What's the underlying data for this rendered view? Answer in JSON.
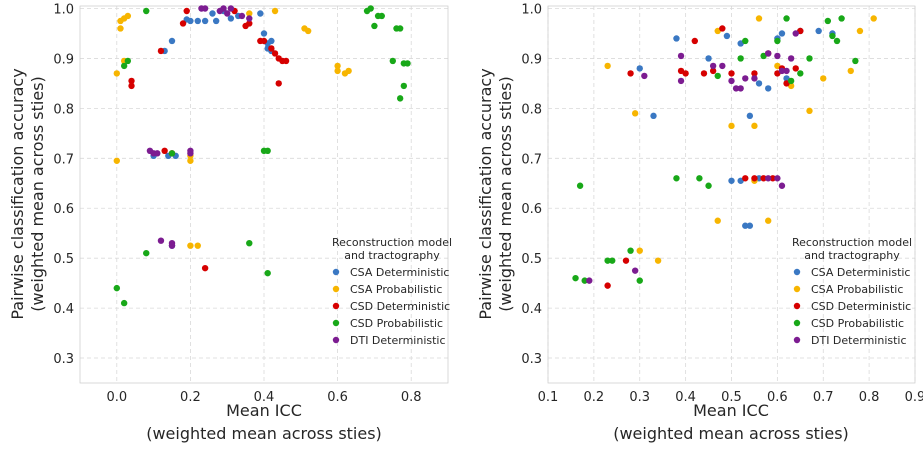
{
  "legend": {
    "title_line1": "Reconstruction model",
    "title_line2": "and tractography"
  },
  "colors": {
    "CSA Deterministic": "#3a78c3",
    "CSA Probabilistic": "#f7b500",
    "CSD Deterministic": "#d60000",
    "CSD Probabilistic": "#18a818",
    "DTI Deterministic": "#7c1c91"
  },
  "chart_data": [
    {
      "type": "scatter",
      "xlabel_line1": "Mean ICC",
      "xlabel_line2": "(weighted mean across sties)",
      "ylabel_line1": "Pairwise classification accuracy",
      "ylabel_line2": "(weighted mean across sties)",
      "xlim": [
        -0.1,
        0.9
      ],
      "ylim": [
        0.25,
        1.005
      ],
      "xticks": [
        0.0,
        0.2,
        0.4,
        0.6,
        0.8
      ],
      "xtick_labels": [
        "0.0",
        "0.2",
        "0.4",
        "0.6",
        "0.8"
      ],
      "yticks": [
        0.3,
        0.4,
        0.5,
        0.6,
        0.7,
        0.8,
        0.9,
        1.0
      ],
      "ytick_labels": [
        "0.3",
        "0.4",
        "0.5",
        "0.6",
        "0.7",
        "0.8",
        "0.9",
        "1.0"
      ],
      "grid": true,
      "legend_position": "lower-right",
      "series": [
        {
          "name": "CSA Deterministic",
          "points": [
            [
              0.13,
              0.915
            ],
            [
              0.15,
              0.935
            ],
            [
              0.19,
              0.978
            ],
            [
              0.2,
              0.975
            ],
            [
              0.22,
              0.975
            ],
            [
              0.24,
              0.975
            ],
            [
              0.26,
              0.99
            ],
            [
              0.27,
              0.975
            ],
            [
              0.29,
              0.995
            ],
            [
              0.31,
              0.98
            ],
            [
              0.33,
              0.985
            ],
            [
              0.39,
              0.99
            ],
            [
              0.4,
              0.95
            ],
            [
              0.41,
              0.93
            ],
            [
              0.41,
              0.92
            ],
            [
              0.42,
              0.935
            ],
            [
              0.42,
              0.915
            ],
            [
              0.1,
              0.705
            ],
            [
              0.14,
              0.705
            ],
            [
              0.16,
              0.705
            ],
            [
              0.15,
              0.525
            ]
          ]
        },
        {
          "name": "CSA Probabilistic",
          "points": [
            [
              0.0,
              0.87
            ],
            [
              0.01,
              0.96
            ],
            [
              0.01,
              0.975
            ],
            [
              0.02,
              0.98
            ],
            [
              0.03,
              0.985
            ],
            [
              0.0,
              0.695
            ],
            [
              0.36,
              0.99
            ],
            [
              0.43,
              0.995
            ],
            [
              0.51,
              0.96
            ],
            [
              0.52,
              0.955
            ],
            [
              0.6,
              0.875
            ],
            [
              0.6,
              0.885
            ],
            [
              0.62,
              0.87
            ],
            [
              0.63,
              0.875
            ],
            [
              0.2,
              0.695
            ],
            [
              0.2,
              0.705
            ],
            [
              0.2,
              0.525
            ],
            [
              0.22,
              0.525
            ],
            [
              0.02,
              0.895
            ]
          ]
        },
        {
          "name": "CSD Deterministic",
          "points": [
            [
              0.04,
              0.855
            ],
            [
              0.04,
              0.845
            ],
            [
              0.12,
              0.915
            ],
            [
              0.18,
              0.97
            ],
            [
              0.19,
              0.995
            ],
            [
              0.32,
              0.995
            ],
            [
              0.35,
              0.965
            ],
            [
              0.36,
              0.97
            ],
            [
              0.39,
              0.935
            ],
            [
              0.4,
              0.935
            ],
            [
              0.42,
              0.92
            ],
            [
              0.43,
              0.91
            ],
            [
              0.44,
              0.85
            ],
            [
              0.44,
              0.9
            ],
            [
              0.45,
              0.895
            ],
            [
              0.46,
              0.895
            ],
            [
              0.13,
              0.715
            ],
            [
              0.15,
              0.71
            ],
            [
              0.24,
              0.48
            ]
          ]
        },
        {
          "name": "CSD Probabilistic",
          "points": [
            [
              0.02,
              0.885
            ],
            [
              0.03,
              0.895
            ],
            [
              0.08,
              0.995
            ],
            [
              0.68,
              0.995
            ],
            [
              0.69,
              1.0
            ],
            [
              0.7,
              0.965
            ],
            [
              0.71,
              0.985
            ],
            [
              0.72,
              0.985
            ],
            [
              0.75,
              0.895
            ],
            [
              0.76,
              0.96
            ],
            [
              0.77,
              0.96
            ],
            [
              0.77,
              0.82
            ],
            [
              0.78,
              0.89
            ],
            [
              0.78,
              0.845
            ],
            [
              0.79,
              0.89
            ],
            [
              0.4,
              0.715
            ],
            [
              0.41,
              0.715
            ],
            [
              0.15,
              0.71
            ],
            [
              0.36,
              0.53
            ],
            [
              0.41,
              0.47
            ],
            [
              0.08,
              0.51
            ],
            [
              0.0,
              0.44
            ],
            [
              0.02,
              0.41
            ]
          ]
        },
        {
          "name": "DTI Deterministic",
          "points": [
            [
              0.23,
              1.0
            ],
            [
              0.24,
              1.0
            ],
            [
              0.28,
              0.995
            ],
            [
              0.29,
              1.0
            ],
            [
              0.3,
              0.99
            ],
            [
              0.31,
              1.0
            ],
            [
              0.34,
              0.985
            ],
            [
              0.36,
              0.98
            ],
            [
              0.09,
              0.715
            ],
            [
              0.1,
              0.71
            ],
            [
              0.11,
              0.71
            ],
            [
              0.2,
              0.71
            ],
            [
              0.2,
              0.715
            ],
            [
              0.12,
              0.535
            ],
            [
              0.15,
              0.53
            ],
            [
              0.15,
              0.525
            ]
          ]
        }
      ]
    },
    {
      "type": "scatter",
      "xlabel_line1": "Mean ICC",
      "xlabel_line2": "(weighted mean across sties)",
      "ylabel_line1": "Pairwise classification accuracy",
      "ylabel_line2": "(weighted mean across sties)",
      "xlim": [
        0.1,
        0.9
      ],
      "ylim": [
        0.25,
        1.005
      ],
      "xticks": [
        0.1,
        0.2,
        0.3,
        0.4,
        0.5,
        0.6,
        0.7,
        0.8,
        0.9
      ],
      "xtick_labels": [
        "0.1",
        "0.2",
        "0.3",
        "0.4",
        "0.5",
        "0.6",
        "0.7",
        "0.8",
        "0.9"
      ],
      "yticks": [
        0.3,
        0.4,
        0.5,
        0.6,
        0.7,
        0.8,
        0.9,
        1.0
      ],
      "ytick_labels": [
        "0.3",
        "0.4",
        "0.5",
        "0.6",
        "0.7",
        "0.8",
        "0.9",
        "1.0"
      ],
      "grid": true,
      "legend_position": "lower-right",
      "series": [
        {
          "name": "CSA Deterministic",
          "points": [
            [
              0.3,
              0.88
            ],
            [
              0.33,
              0.785
            ],
            [
              0.38,
              0.94
            ],
            [
              0.45,
              0.9
            ],
            [
              0.49,
              0.945
            ],
            [
              0.52,
              0.93
            ],
            [
              0.54,
              0.785
            ],
            [
              0.56,
              0.85
            ],
            [
              0.58,
              0.84
            ],
            [
              0.6,
              0.94
            ],
            [
              0.61,
              0.95
            ],
            [
              0.62,
              0.86
            ],
            [
              0.65,
              0.955
            ],
            [
              0.69,
              0.955
            ],
            [
              0.72,
              0.95
            ],
            [
              0.53,
              0.565
            ],
            [
              0.54,
              0.565
            ],
            [
              0.5,
              0.655
            ],
            [
              0.52,
              0.655
            ],
            [
              0.56,
              0.66
            ]
          ]
        },
        {
          "name": "CSA Probabilistic",
          "points": [
            [
              0.23,
              0.885
            ],
            [
              0.29,
              0.79
            ],
            [
              0.3,
              0.515
            ],
            [
              0.34,
              0.495
            ],
            [
              0.47,
              0.575
            ],
            [
              0.47,
              0.955
            ],
            [
              0.5,
              0.765
            ],
            [
              0.55,
              0.765
            ],
            [
              0.56,
              0.98
            ],
            [
              0.6,
              0.885
            ],
            [
              0.63,
              0.845
            ],
            [
              0.67,
              0.795
            ],
            [
              0.7,
              0.86
            ],
            [
              0.76,
              0.875
            ],
            [
              0.78,
              0.955
            ],
            [
              0.81,
              0.98
            ],
            [
              0.55,
              0.655
            ],
            [
              0.58,
              0.575
            ]
          ]
        },
        {
          "name": "CSD Deterministic",
          "points": [
            [
              0.23,
              0.445
            ],
            [
              0.27,
              0.495
            ],
            [
              0.28,
              0.87
            ],
            [
              0.39,
              0.875
            ],
            [
              0.4,
              0.87
            ],
            [
              0.42,
              0.935
            ],
            [
              0.44,
              0.87
            ],
            [
              0.46,
              0.875
            ],
            [
              0.48,
              0.96
            ],
            [
              0.5,
              0.87
            ],
            [
              0.55,
              0.87
            ],
            [
              0.58,
              0.91
            ],
            [
              0.6,
              0.87
            ],
            [
              0.61,
              0.88
            ],
            [
              0.62,
              0.85
            ],
            [
              0.64,
              0.88
            ],
            [
              0.65,
              0.955
            ],
            [
              0.53,
              0.66
            ],
            [
              0.55,
              0.66
            ],
            [
              0.57,
              0.66
            ],
            [
              0.59,
              0.66
            ]
          ]
        },
        {
          "name": "CSD Probabilistic",
          "points": [
            [
              0.16,
              0.46
            ],
            [
              0.17,
              0.645
            ],
            [
              0.18,
              0.455
            ],
            [
              0.23,
              0.495
            ],
            [
              0.24,
              0.495
            ],
            [
              0.28,
              0.515
            ],
            [
              0.3,
              0.455
            ],
            [
              0.38,
              0.66
            ],
            [
              0.43,
              0.66
            ],
            [
              0.45,
              0.645
            ],
            [
              0.47,
              0.865
            ],
            [
              0.52,
              0.9
            ],
            [
              0.53,
              0.935
            ],
            [
              0.57,
              0.905
            ],
            [
              0.6,
              0.935
            ],
            [
              0.62,
              0.98
            ],
            [
              0.63,
              0.855
            ],
            [
              0.65,
              0.87
            ],
            [
              0.67,
              0.9
            ],
            [
              0.71,
              0.975
            ],
            [
              0.72,
              0.945
            ],
            [
              0.73,
              0.935
            ],
            [
              0.74,
              0.98
            ],
            [
              0.77,
              0.895
            ]
          ]
        },
        {
          "name": "DTI Deterministic",
          "points": [
            [
              0.19,
              0.455
            ],
            [
              0.29,
              0.475
            ],
            [
              0.31,
              0.865
            ],
            [
              0.39,
              0.905
            ],
            [
              0.39,
              0.855
            ],
            [
              0.46,
              0.885
            ],
            [
              0.48,
              0.885
            ],
            [
              0.5,
              0.855
            ],
            [
              0.51,
              0.84
            ],
            [
              0.52,
              0.84
            ],
            [
              0.53,
              0.86
            ],
            [
              0.55,
              0.86
            ],
            [
              0.58,
              0.91
            ],
            [
              0.6,
              0.905
            ],
            [
              0.61,
              0.875
            ],
            [
              0.62,
              0.875
            ],
            [
              0.63,
              0.9
            ],
            [
              0.64,
              0.95
            ],
            [
              0.58,
              0.66
            ],
            [
              0.6,
              0.66
            ],
            [
              0.61,
              0.645
            ]
          ]
        }
      ]
    }
  ]
}
